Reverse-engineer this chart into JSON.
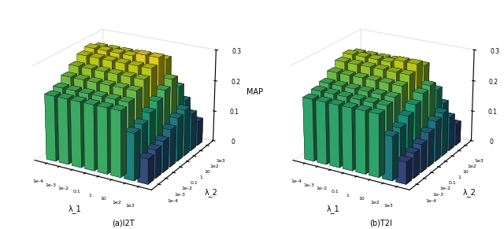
{
  "title_a": "(a)I2T",
  "title_b": "(b)T2I",
  "xlabel": "λ_1",
  "ylabel": "λ_2",
  "zlabel": "MAP",
  "zlim": [
    0,
    0.3
  ],
  "zticks": [
    0,
    0.1,
    0.2,
    0.3
  ],
  "param_labels": [
    "1e-4",
    "1e-3",
    "1e-2",
    "0.1",
    "1",
    "10",
    "1e2",
    "1e3"
  ],
  "data_i2t": [
    [
      0.21,
      0.22,
      0.24,
      0.26,
      0.28,
      0.29,
      0.28,
      0.2
    ],
    [
      0.21,
      0.22,
      0.24,
      0.26,
      0.28,
      0.29,
      0.28,
      0.2
    ],
    [
      0.21,
      0.22,
      0.24,
      0.26,
      0.28,
      0.29,
      0.28,
      0.2
    ],
    [
      0.21,
      0.22,
      0.24,
      0.26,
      0.28,
      0.29,
      0.28,
      0.2
    ],
    [
      0.21,
      0.22,
      0.24,
      0.26,
      0.28,
      0.3,
      0.28,
      0.2
    ],
    [
      0.21,
      0.22,
      0.24,
      0.26,
      0.28,
      0.3,
      0.28,
      0.2
    ],
    [
      0.15,
      0.16,
      0.18,
      0.2,
      0.22,
      0.24,
      0.2,
      0.14
    ],
    [
      0.08,
      0.09,
      0.1,
      0.12,
      0.14,
      0.15,
      0.12,
      0.08
    ]
  ],
  "data_t2i": [
    [
      0.2,
      0.21,
      0.22,
      0.24,
      0.26,
      0.27,
      0.26,
      0.18
    ],
    [
      0.2,
      0.21,
      0.22,
      0.24,
      0.26,
      0.27,
      0.26,
      0.18
    ],
    [
      0.2,
      0.21,
      0.22,
      0.24,
      0.26,
      0.27,
      0.26,
      0.18
    ],
    [
      0.2,
      0.21,
      0.22,
      0.24,
      0.26,
      0.27,
      0.26,
      0.18
    ],
    [
      0.2,
      0.21,
      0.22,
      0.24,
      0.26,
      0.28,
      0.26,
      0.18
    ],
    [
      0.2,
      0.21,
      0.22,
      0.24,
      0.26,
      0.28,
      0.26,
      0.18
    ],
    [
      0.14,
      0.15,
      0.17,
      0.19,
      0.21,
      0.22,
      0.19,
      0.13
    ],
    [
      0.07,
      0.08,
      0.09,
      0.11,
      0.13,
      0.14,
      0.11,
      0.07
    ]
  ],
  "colormap": "viridis",
  "bar_width": 0.75,
  "bar_depth": 0.75,
  "elev": 22,
  "azim": -60
}
